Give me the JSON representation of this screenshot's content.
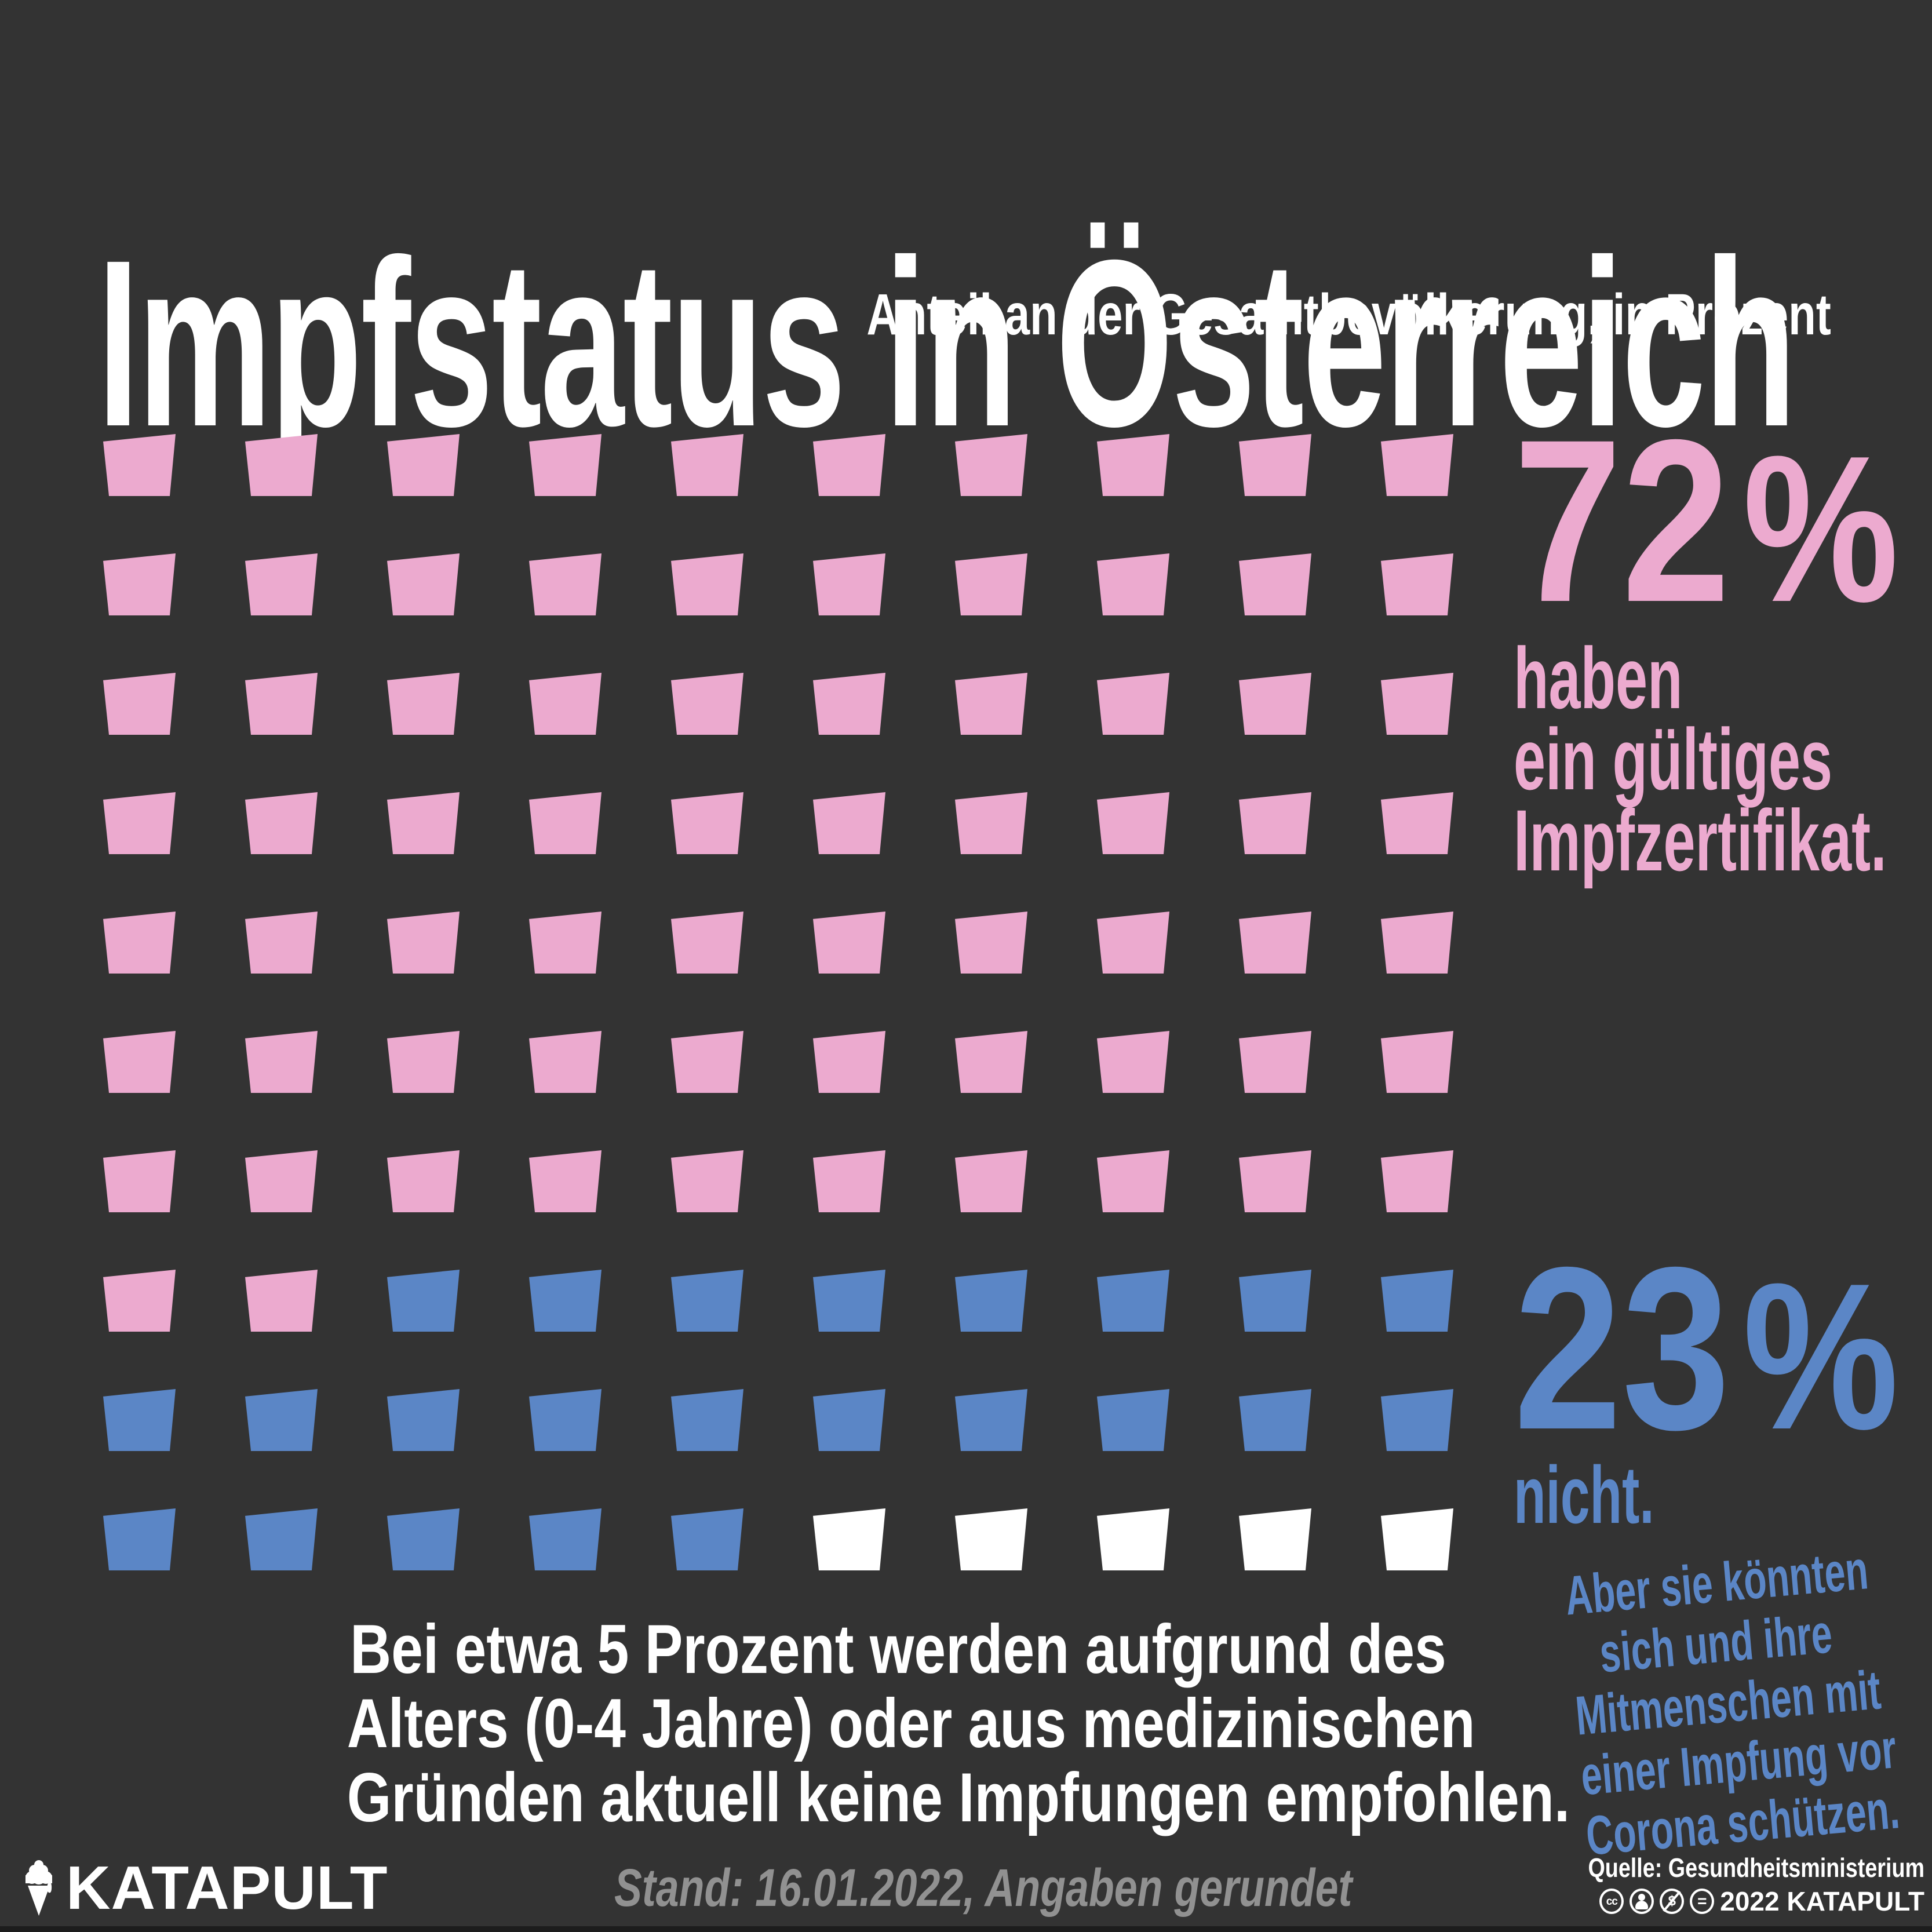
{
  "background": "#333333",
  "header": {
    "title": "Impfstatus in Österreich",
    "subtitle": "Anteil an der Gesamtbevölkerung, in Prozent"
  },
  "chart_data": {
    "type": "pie",
    "variant": "waffle-pictogram-grid",
    "title": "Impfstatus in Österreich",
    "subtitle": "Anteil an der Gesamtbevölkerung, in Prozent",
    "units": "Prozent der Gesamtbevölkerung",
    "grid": {
      "rows": 10,
      "cols": 10,
      "order": "row-major from top-left",
      "total_icons": 100
    },
    "categories": [
      "haben ein gültiges Impfzertifikat",
      "nicht geimpft",
      "keine Impfung empfohlen (Alter 0-4 Jahre oder medizinische Gründe)"
    ],
    "values": [
      72,
      23,
      5
    ],
    "colors": [
      "#ECAACF",
      "#5B86C6",
      "#FFFFFF"
    ],
    "legend_position": "right"
  },
  "stats": {
    "vaccinated": {
      "number": "72",
      "percent_sign": "%",
      "lines": [
        "haben",
        "ein gültiges",
        "Impfzertifikat."
      ],
      "color": "#ECAACF"
    },
    "unvaccinated": {
      "number": "23",
      "percent_sign": "%",
      "caption": "nicht.",
      "color": "#5B86C6",
      "note_lines": [
        "Aber sie könnten",
        "sich und ihre",
        "Mitmenschen mit",
        "einer Impfung vor",
        "Corona schützen."
      ]
    },
    "exempt_lines": [
      "Bei etwa 5 Prozent werden aufgrund des",
      "Alters (0-4 Jahre) oder aus medizinischen",
      "Gründen aktuell keine Impfungen empfohlen."
    ]
  },
  "footer": {
    "brand": "KATAPULT",
    "status": "Stand: 16.01.2022, Angaben gerundet",
    "source": "Quelle: Gesundheitsministerium",
    "license_line": "2022 KATAPULT",
    "license_icons": [
      "cc",
      "by",
      "nc",
      "nd"
    ],
    "icon_glyphs": {
      "cc": "cc",
      "nc": "$",
      "nd": "="
    }
  }
}
